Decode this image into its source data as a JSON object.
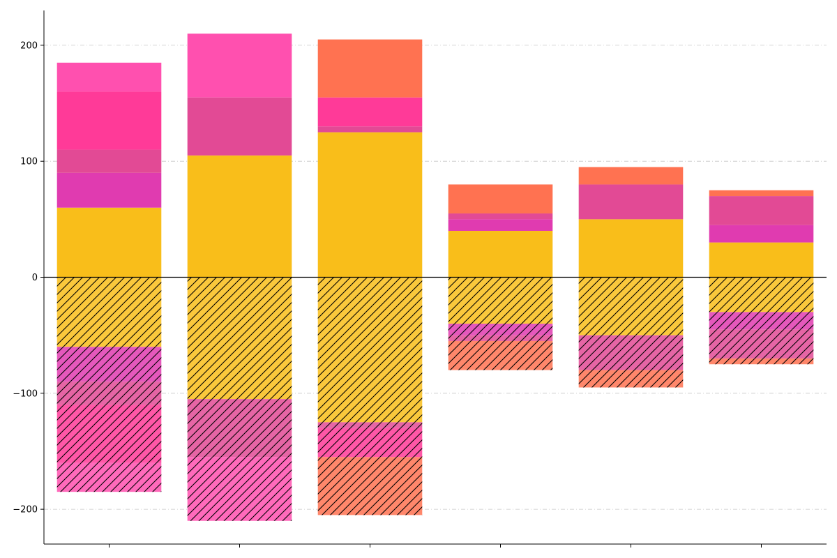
{
  "chart_data": {
    "type": "bar",
    "stacked": true,
    "mirrored": true,
    "categories": [
      "",
      "",
      "",
      "",
      "",
      ""
    ],
    "series": [
      {
        "color": "#F9BE1A",
        "values": [
          60,
          105,
          125,
          40,
          50,
          30
        ]
      },
      {
        "color": "#E03BB0",
        "values": [
          30,
          0,
          0,
          10,
          0,
          15
        ]
      },
      {
        "color": "#E24A95",
        "values": [
          20,
          50,
          5,
          5,
          30,
          25
        ]
      },
      {
        "color": "#FF3A98",
        "values": [
          50,
          0,
          25,
          0,
          0,
          0
        ]
      },
      {
        "color": "#FF50AF",
        "values": [
          25,
          55,
          0,
          0,
          0,
          0
        ]
      },
      {
        "color": "#FF7251",
        "values": [
          0,
          0,
          50,
          25,
          15,
          5
        ]
      }
    ],
    "mirror_style": {
      "hatch": "diagonal",
      "fill_opacity": 0.85
    },
    "ylim": [
      -230,
      230
    ],
    "yticks": [
      200,
      100,
      0,
      -100,
      -200
    ],
    "ytick_labels": [
      "200",
      "100",
      "0",
      "−100",
      "−200"
    ],
    "grid": {
      "y": true,
      "style": "dash-dot"
    },
    "zero_line": true,
    "legend": "none",
    "title": "",
    "xlabel": "",
    "ylabel": ""
  }
}
